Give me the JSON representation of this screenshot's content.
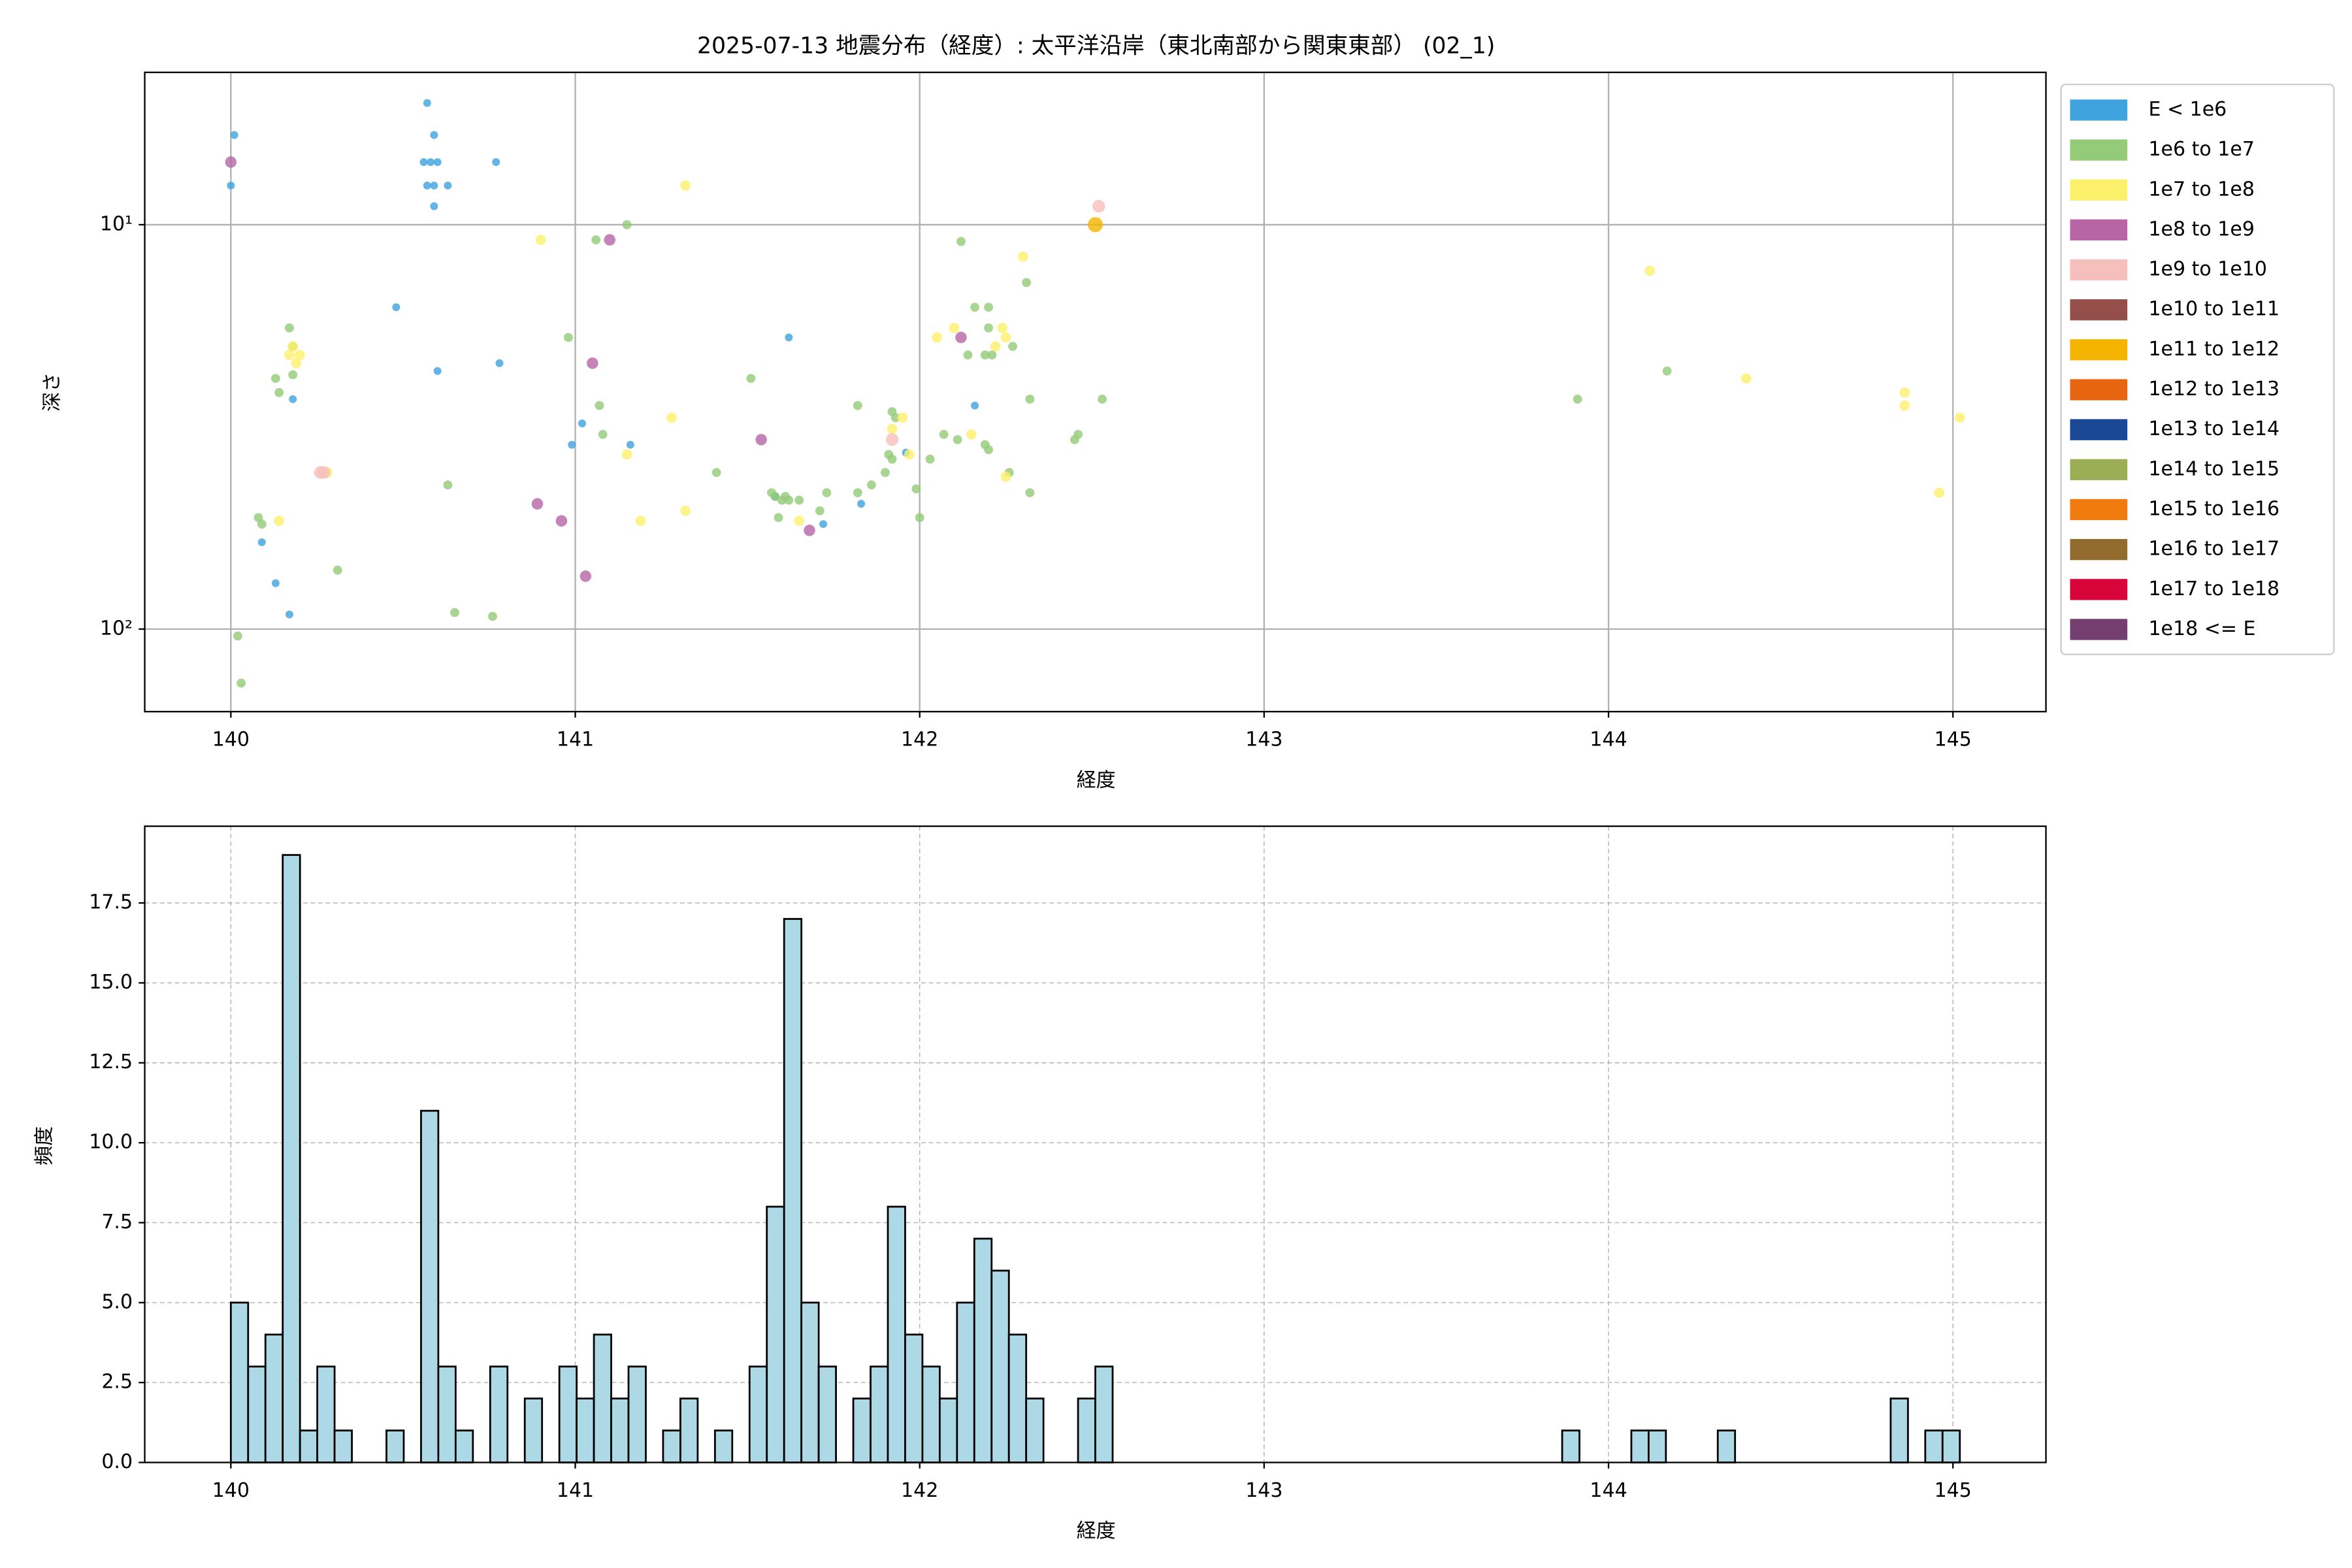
{
  "chart_data": [
    {
      "type": "scatter",
      "title": "2025-07-13 地震分布（経度）: 太平洋沿岸（東北南部から関東東部） (02_1)",
      "xlabel": "経度",
      "ylabel": "深さ",
      "xlim": [
        139.75,
        145.27
      ],
      "xticks": [
        140,
        141,
        142,
        143,
        144,
        145
      ],
      "ylim": [
        4.2,
        160
      ],
      "yscale": "log",
      "y_inverted": true,
      "yticks": [
        {
          "value": 10,
          "label": "10¹"
        },
        {
          "value": 100,
          "label": "10²"
        }
      ],
      "grid": true,
      "legend": "right",
      "series": [
        {
          "name": "E < 1e6",
          "color": "#3fa3dd",
          "x": [
            140.01,
            140.0,
            140.13,
            140.09,
            140.17,
            140.18,
            140.48,
            140.6,
            140.57,
            140.59,
            140.56,
            140.58,
            140.6,
            140.57,
            140.59,
            140.63,
            140.59,
            140.77,
            140.78,
            140.99,
            141.02,
            141.16,
            141.62,
            142.16,
            141.96,
            141.83,
            141.72,
            141.58
          ],
          "values": [
            6,
            8,
            77,
            61,
            92,
            27,
            16,
            23,
            5,
            6,
            7,
            7,
            7,
            8,
            8,
            8,
            9,
            7,
            22,
            35,
            31,
            35,
            19,
            28,
            36.6,
            49,
            55,
            47
          ]
        },
        {
          "name": "1e6 to 1e7",
          "color": "#93cb78",
          "x": [
            140.02,
            140.03,
            140.08,
            140.09,
            140.13,
            140.14,
            140.17,
            140.18,
            140.18,
            140.31,
            140.63,
            140.65,
            140.76,
            140.98,
            141.07,
            141.08,
            141.06,
            141.15,
            141.41,
            141.51,
            141.57,
            141.58,
            141.6,
            141.61,
            141.62,
            141.59,
            141.65,
            141.71,
            141.73,
            141.82,
            141.86,
            141.82,
            141.92,
            141.93,
            141.91,
            141.92,
            141.9,
            141.99,
            142.03,
            142.0,
            142.11,
            142.07,
            142.12,
            142.14,
            142.16,
            142.19,
            142.21,
            142.2,
            142.2,
            142.19,
            142.2,
            142.26,
            142.27,
            142.31,
            142.32,
            142.32,
            142.45,
            142.46,
            142.53,
            143.91,
            144.17
          ],
          "values": [
            104,
            136,
            53,
            55,
            24,
            26,
            18,
            20,
            23.5,
            71.5,
            44,
            91,
            93,
            19,
            28,
            33,
            10.9,
            10,
            41,
            24,
            46,
            47,
            48,
            47,
            48,
            53,
            48,
            51,
            46,
            46,
            44,
            28,
            29,
            30,
            37,
            38,
            41,
            45,
            38,
            53,
            34,
            33,
            11,
            21,
            16,
            21,
            21,
            16,
            18,
            35,
            36,
            41,
            20,
            13.9,
            27,
            46,
            34,
            33,
            27,
            27,
            23
          ]
        },
        {
          "name": "1e7 to 1e8",
          "color": "#fdf06a",
          "x": [
            140.9,
            141.32,
            140.17,
            140.18,
            140.19,
            140.2,
            140.14,
            140.28,
            141.28,
            141.15,
            141.19,
            141.32,
            141.65,
            141.92,
            141.95,
            141.97,
            142.05,
            142.1,
            142.15,
            142.24,
            142.25,
            142.22,
            142.25,
            142.3,
            144.12,
            144.4,
            144.86,
            144.86,
            144.96,
            145.02
          ],
          "values": [
            10.9,
            8,
            21,
            20,
            22,
            21,
            54,
            41,
            30,
            37,
            54,
            51,
            54,
            32,
            30,
            37,
            19,
            18,
            33,
            18,
            19,
            20,
            42,
            12,
            13,
            24,
            26,
            28,
            46,
            30
          ]
        },
        {
          "name": "1e8 to 1e9",
          "color": "#b765a5",
          "x": [
            140.0,
            141.1,
            141.05,
            140.89,
            140.96,
            141.03,
            141.54,
            141.68,
            142.12
          ],
          "values": [
            7,
            10.9,
            22,
            49,
            54,
            74,
            34,
            57,
            19
          ]
        },
        {
          "name": "1e9 to 1e10",
          "color": "#f6bfbb",
          "x": [
            140.26,
            140.27,
            141.92,
            142.52
          ],
          "values": [
            41,
            41,
            34,
            9
          ]
        },
        {
          "name": "1e10 to 1e11",
          "color": "#954f4b",
          "x": [],
          "values": []
        },
        {
          "name": "1e11 to 1e12",
          "color": "#f4b400",
          "x": [
            142.51
          ],
          "values": [
            10
          ]
        },
        {
          "name": "1e12 to 1e13",
          "color": "#e8650f",
          "x": [],
          "values": []
        },
        {
          "name": "1e13 to 1e14",
          "color": "#1a4894",
          "x": [],
          "values": []
        },
        {
          "name": "1e14 to 1e15",
          "color": "#9bae55",
          "x": [],
          "values": []
        },
        {
          "name": "1e15 to 1e16",
          "color": "#f17b0f",
          "x": [],
          "values": []
        },
        {
          "name": "1e16 to 1e17",
          "color": "#946b2f",
          "x": [],
          "values": []
        },
        {
          "name": "1e17 to 1e18",
          "color": "#d8053b",
          "x": [],
          "values": []
        },
        {
          "name": "1e18 <= E",
          "color": "#743f6e",
          "x": [],
          "values": []
        }
      ]
    },
    {
      "type": "histogram",
      "xlabel": "経度",
      "ylabel": "頻度",
      "color": "#add8e6",
      "edgecolor": "#000000",
      "xlim": [
        139.75,
        145.27
      ],
      "xticks": [
        140,
        141,
        142,
        143,
        144,
        145
      ],
      "ylim": [
        0,
        19.9
      ],
      "yticks": [
        {
          "value": 0,
          "label": "0.0"
        },
        2.5,
        {
          "value": 5,
          "label": "5.0"
        },
        7.5,
        {
          "value": 10,
          "label": "10.0"
        },
        12.5,
        {
          "value": 15,
          "label": "15.0"
        },
        17.5
      ],
      "grid": true,
      "bins": [
        140,
        140.0502,
        140.1004,
        140.1506,
        140.2008,
        140.251,
        140.3012,
        140.3514,
        140.4016,
        140.4518,
        140.502,
        140.5522,
        140.6024,
        140.6526,
        140.7028,
        140.753,
        140.8032,
        140.8534,
        140.9036,
        140.9538,
        141.004,
        141.0542,
        141.1044,
        141.1546,
        141.2048,
        141.255,
        141.3052,
        141.3554,
        141.4056,
        141.4558,
        141.506,
        141.5562,
        141.6064,
        141.6566,
        141.7068,
        141.757,
        141.8072,
        141.8574,
        141.9076,
        141.9578,
        142.008,
        142.0582,
        142.1084,
        142.1586,
        142.2088,
        142.259,
        142.3092,
        142.3594,
        142.4096,
        142.4598,
        142.51,
        142.5602,
        142.6104,
        142.6606,
        142.7108,
        142.761,
        142.8112,
        142.8614,
        142.9116,
        142.9618,
        143.012,
        143.0622,
        143.1124,
        143.1626,
        143.2128,
        143.263,
        143.3132,
        143.3634,
        143.4136,
        143.4638,
        143.514,
        143.5642,
        143.6144,
        143.6646,
        143.7148,
        143.765,
        143.8152,
        143.8654,
        143.9156,
        143.9658,
        144.016,
        144.0662,
        144.1164,
        144.1666,
        144.2168,
        144.267,
        144.3172,
        144.3674,
        144.4176,
        144.4678,
        144.518,
        144.5682,
        144.6184,
        144.6686,
        144.7188,
        144.769,
        144.8192,
        144.8694,
        144.9196,
        144.9698,
        145.02
      ],
      "values": [
        5,
        3,
        4,
        19,
        1,
        3,
        1,
        0,
        0,
        1,
        0,
        11,
        3,
        1,
        0,
        3,
        0,
        2,
        0,
        3,
        2,
        4,
        2,
        3,
        0,
        1,
        2,
        0,
        1,
        0,
        3,
        8,
        17,
        5,
        3,
        0,
        2,
        3,
        8,
        4,
        3,
        2,
        5,
        7,
        6,
        4,
        2,
        0,
        0,
        2,
        3,
        0,
        0,
        0,
        0,
        0,
        0,
        0,
        0,
        0,
        0,
        0,
        0,
        0,
        0,
        0,
        0,
        0,
        0,
        0,
        0,
        0,
        0,
        0,
        0,
        0,
        0,
        1,
        0,
        0,
        0,
        1,
        1,
        0,
        0,
        0,
        1,
        0,
        0,
        0,
        0,
        0,
        0,
        0,
        0,
        0,
        2,
        0,
        1,
        1
      ]
    }
  ]
}
